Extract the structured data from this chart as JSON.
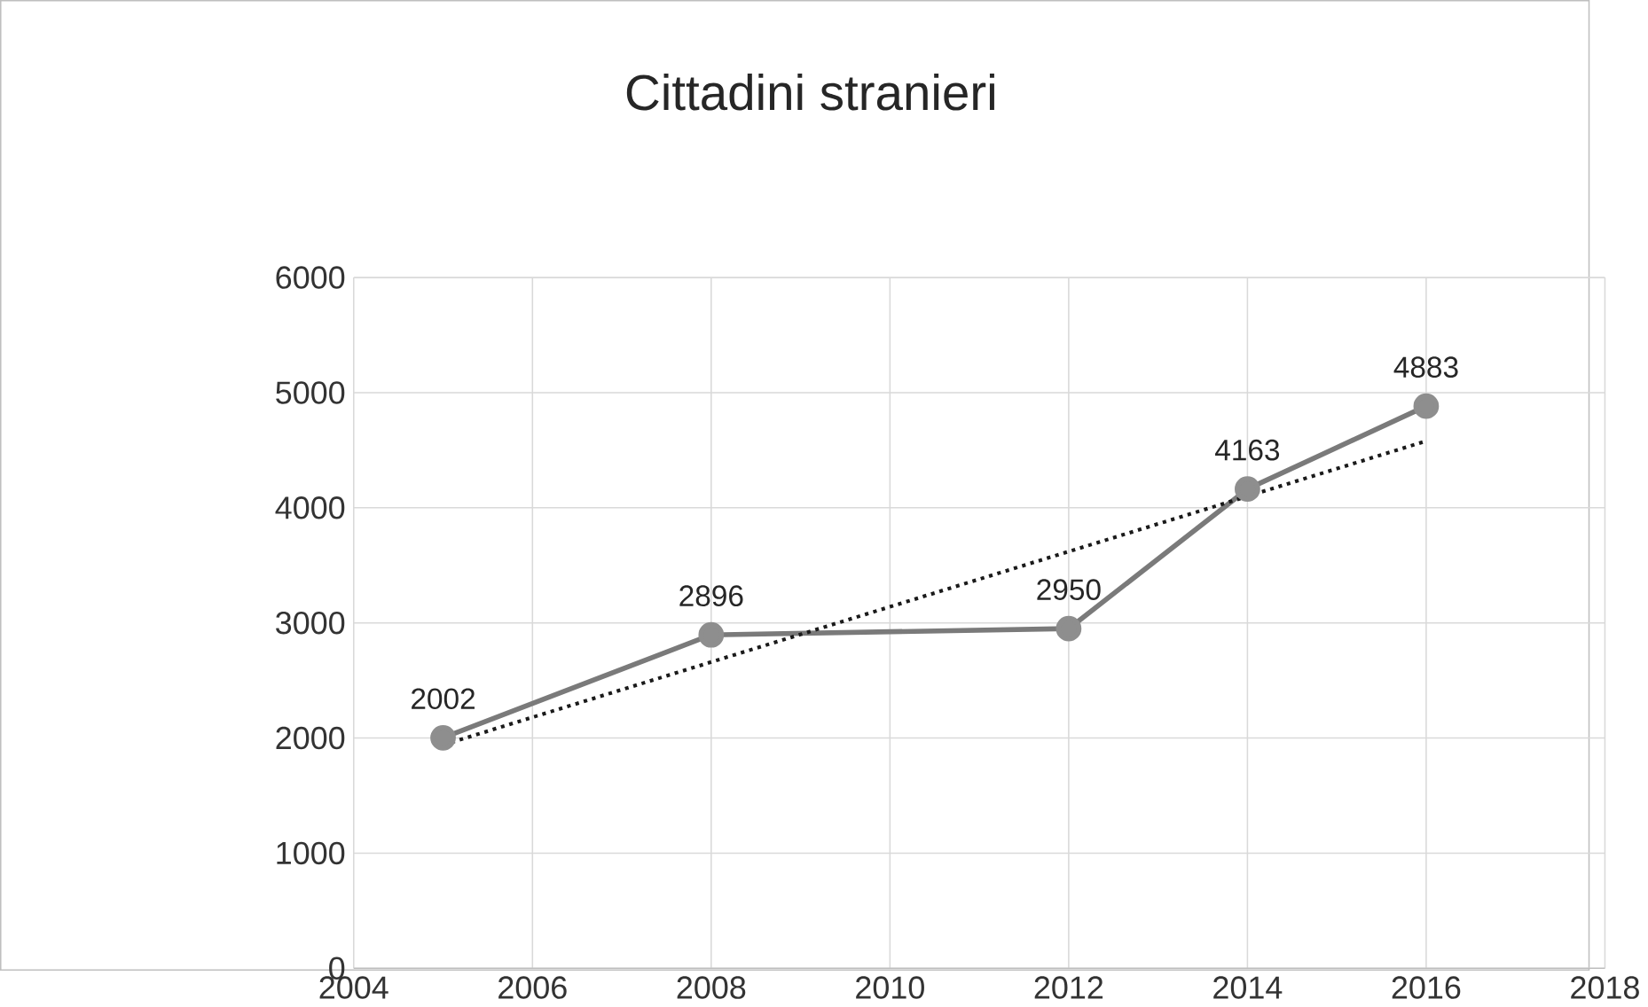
{
  "chart_data": {
    "type": "line",
    "title": "Cittadini stranieri",
    "x": [
      2005,
      2008,
      2012,
      2014,
      2016
    ],
    "series": [
      {
        "color": "#7a7a7a",
        "values": [
          2002,
          2896,
          2950,
          4163,
          4883
        ],
        "marker": "circle",
        "line_style": "solid",
        "data_labels": true
      },
      {
        "type": "line",
        "color": "#1a1a1a",
        "x": [
          2005,
          2016
        ],
        "values": [
          1940,
          4580
        ],
        "marker": "none",
        "line_style": "dotted"
      }
    ],
    "xlim": [
      2004,
      2018
    ],
    "xticks": [
      2004,
      2006,
      2008,
      2010,
      2012,
      2014,
      2016,
      2018
    ],
    "ylim": [
      0,
      6000
    ],
    "yticks": [
      0,
      1000,
      2000,
      3000,
      4000,
      5000,
      6000
    ],
    "grid": true
  }
}
